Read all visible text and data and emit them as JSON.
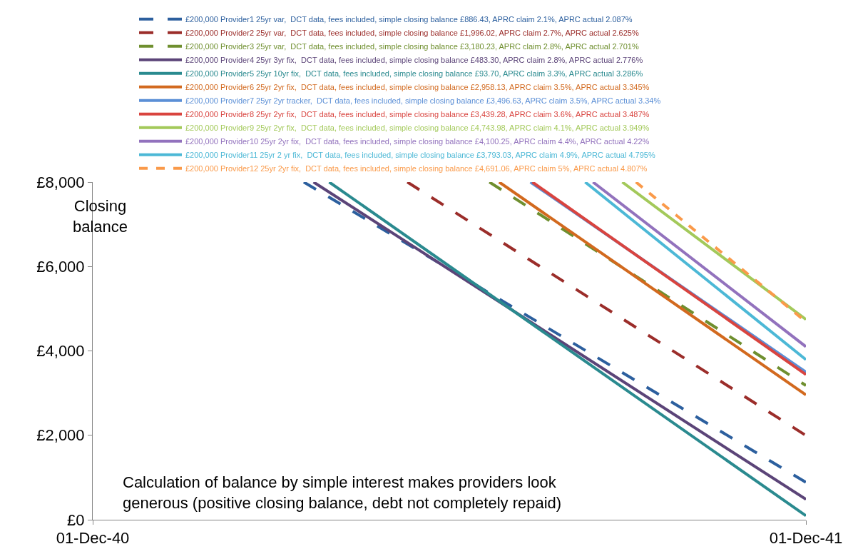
{
  "chart_data": {
    "type": "line",
    "ylabel": "Closing balance",
    "xlim": [
      "2040-12-01",
      "2041-12-01"
    ],
    "xticks": [
      {
        "value": "2040-12-01",
        "label": "01-Dec-40"
      },
      {
        "value": "2041-12-01",
        "label": "01-Dec-41"
      }
    ],
    "ylim": [
      0,
      8000
    ],
    "yticks": [
      {
        "value": 0,
        "label": "£0"
      },
      {
        "value": 2000,
        "label": "£2,000"
      },
      {
        "value": 4000,
        "label": "£4,000"
      },
      {
        "value": 6000,
        "label": "£6,000"
      },
      {
        "value": 8000,
        "label": "£8,000"
      }
    ],
    "legend": "top right",
    "marker": "none",
    "annotations": [
      "Calculation of balance by simple interest makes providers look\ngenerous (positive closing balance, debt not completely repaid)"
    ],
    "series": [
      {
        "name": "£200,000 Provider1 25yr var,  DCT data, fees included, simple closing balance £886.43, APRC claim 2.1%, APRC actual 2.087%",
        "color": "#2c5f9e",
        "line_style": "dashed",
        "x": [
          "2041-03-19",
          "2041-12-01"
        ],
        "values": [
          8000,
          886.43
        ]
      },
      {
        "name": "£200,000 Provider2 25yr var,  DCT data, fees included, simple closing balance £1,996.02, APRC claim 2.7%, APRC actual 2.625%",
        "color": "#9b2d2a",
        "line_style": "dashed",
        "x": [
          "2041-05-11",
          "2041-12-01"
        ],
        "values": [
          8000,
          1996.02
        ]
      },
      {
        "name": "£200,000 Provider3 25yr var,  DCT data, fees included, simple closing balance £3,180.23, APRC claim 2.8%, APRC actual 2.701%",
        "color": "#6f8f2f",
        "line_style": "dashed",
        "x": [
          "2041-06-22",
          "2041-12-01"
        ],
        "values": [
          8000,
          3180.23
        ]
      },
      {
        "name": "£200,000 Provider4 25yr 3yr fix,  DCT data, fees included, simple closing balance £483.30, APRC claim 2.8%, APRC actual 2.776%",
        "color": "#5b4478",
        "line_style": "solid",
        "x": [
          "2041-03-24",
          "2041-12-01"
        ],
        "values": [
          8000,
          483.3
        ]
      },
      {
        "name": "£200,000 Provider5 25yr 10yr fix,  DCT data, fees included, simple closing balance £93.70, APRC claim 3.3%, APRC actual 3.286%",
        "color": "#2a8a8f",
        "line_style": "solid",
        "x": [
          "2041-04-01",
          "2041-12-01"
        ],
        "values": [
          8000,
          93.7
        ]
      },
      {
        "name": "£200,000 Provider6 25yr 2yr fix,  DCT data, fees included, simple closing balance £2,958.13, APRC claim 3.5%, APRC actual 3.345%",
        "color": "#d2691e",
        "line_style": "solid",
        "x": [
          "2041-06-27",
          "2041-12-01"
        ],
        "values": [
          8000,
          2958.13
        ]
      },
      {
        "name": "£200,000 Provider7 25yr 2yr tracker,  DCT data, fees included, simple closing balance £3,496.63, APRC claim 3.5%, APRC actual 3.34%",
        "color": "#5b8fd6",
        "line_style": "solid",
        "x": [
          "2041-07-13",
          "2041-12-01"
        ],
        "values": [
          8000,
          3496.63
        ]
      },
      {
        "name": "£200,000 Provider8 25yr 2yr fix,  DCT data, fees included, simple closing balance £3,439.28, APRC claim 3.6%, APRC actual 3.487%",
        "color": "#d9443f",
        "line_style": "solid",
        "x": [
          "2041-07-14",
          "2041-12-01"
        ],
        "values": [
          8000,
          3439.28
        ]
      },
      {
        "name": "£200,000 Provider9 25yr 2yr fix,  DCT data, fees included, simple closing balance £4,743.98, APRC claim 4.1%, APRC actual 3.949%",
        "color": "#a3c95a",
        "line_style": "solid",
        "x": [
          "2041-08-29",
          "2041-12-01"
        ],
        "values": [
          8000,
          4743.98
        ]
      },
      {
        "name": "£200,000 Provider10 25yr 2yr fix,  DCT data, fees included, simple closing balance £4,100.25, APRC claim 4.4%, APRC actual 4.22%",
        "color": "#9272bd",
        "line_style": "solid",
        "x": [
          "2041-08-14",
          "2041-12-01"
        ],
        "values": [
          8000,
          4100.25
        ]
      },
      {
        "name": "£200,000 Provider11 25yr 2 yr fix,  DCT data, fees included, simple closing balance £3,793.03, APRC claim 4.9%, APRC actual 4.795%",
        "color": "#4cb8d6",
        "line_style": "solid",
        "x": [
          "2041-08-10",
          "2041-12-01"
        ],
        "values": [
          8000,
          3793.03
        ]
      },
      {
        "name": "£200,000 Provider12 25yr 2yr fix,  DCT data, fees included, simple closing balance £4,691.06, APRC claim 5%, APRC actual 4.807%",
        "color": "#fa9a4a",
        "line_style": "dotted",
        "x": [
          "2041-09-05",
          "2041-12-01"
        ],
        "values": [
          8000,
          4691.06
        ]
      }
    ]
  }
}
